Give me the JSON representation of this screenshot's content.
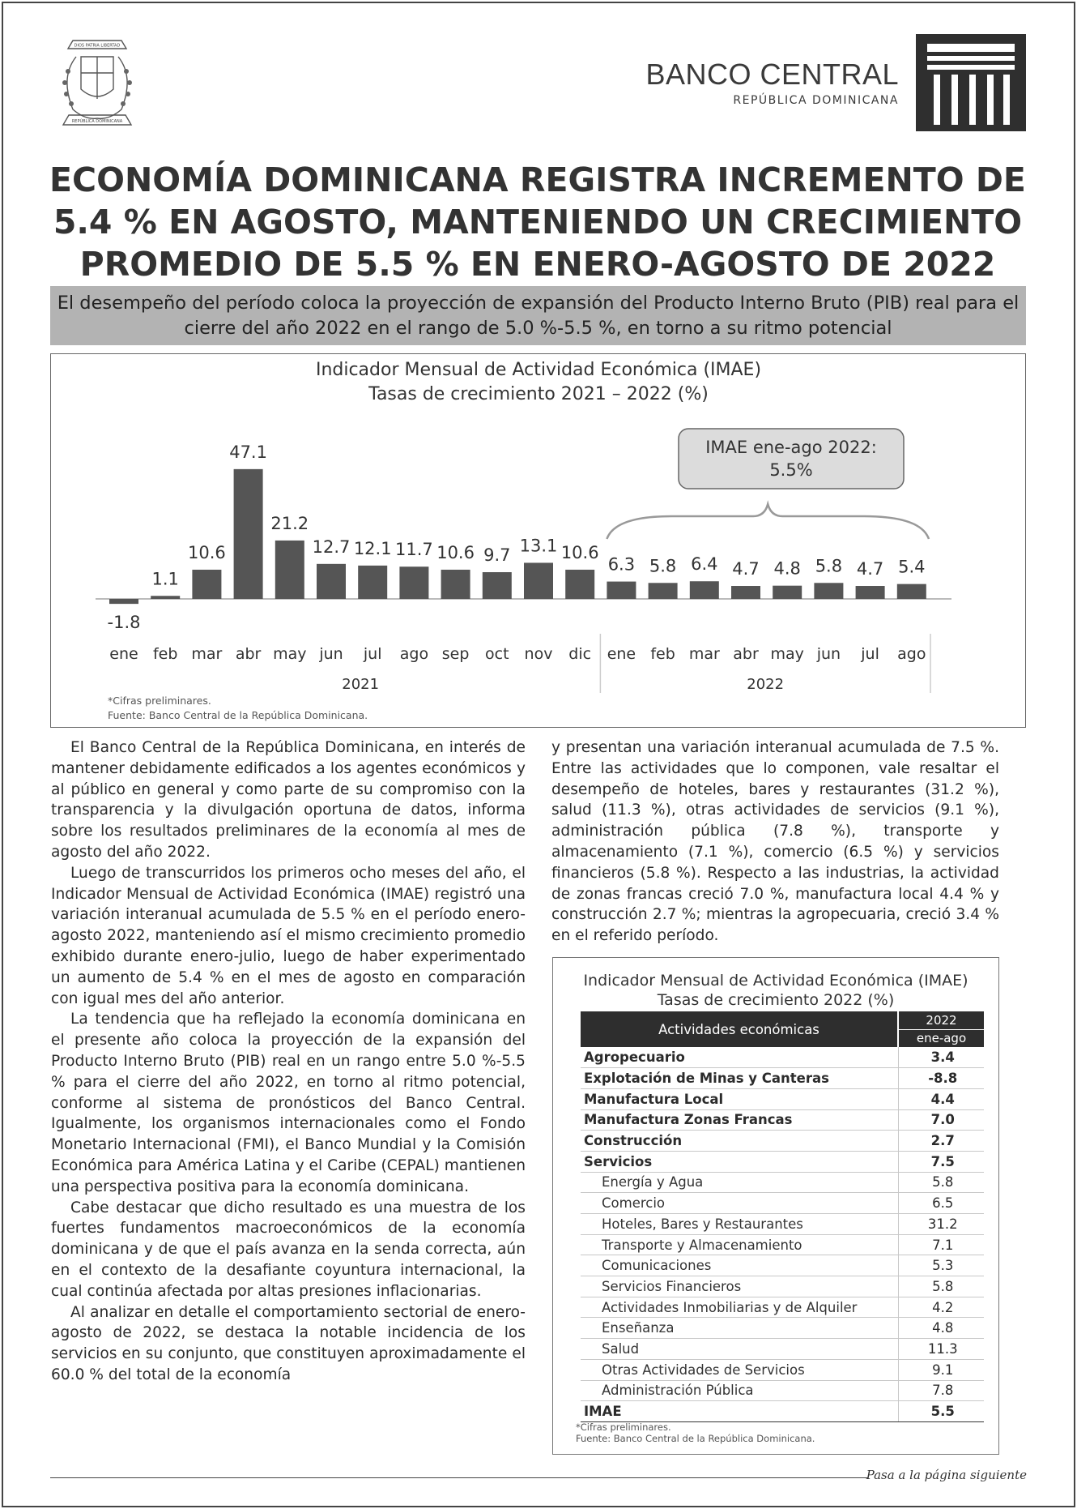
{
  "header": {
    "bank_name": "BANCO CENTRAL",
    "bank_subtitle": "REPÚBLICA DOMINICANA",
    "seal_text_top": "DIOS PATRIA LIBERTAD",
    "seal_text_bottom": "REPÚBLICA DOMINICANA"
  },
  "headline": "ECONOMÍA DOMINICANA REGISTRA INCREMENTO DE 5.4 % EN AGOSTO, MANTENIENDO UN CRECIMIENTO PROMEDIO DE 5.5 % EN ENERO-AGOSTO DE 2022",
  "subhead": "El desempeño del período coloca la proyección de expansión del Producto Interno Bruto (PIB) real para el cierre del año 2022 en el rango de 5.0 %-5.5 %, en torno a su ritmo potencial",
  "chart_data": {
    "type": "bar",
    "title": "Indicador Mensual de Actividad Económica (IMAE)",
    "subtitle": "Tasas de crecimiento 2021 – 2022 (%)",
    "categories": [
      "ene",
      "feb",
      "mar",
      "abr",
      "may",
      "jun",
      "jul",
      "ago",
      "sep",
      "oct",
      "nov",
      "dic",
      "ene",
      "feb",
      "mar",
      "abr",
      "may",
      "jun",
      "jul",
      "ago"
    ],
    "values": [
      -1.8,
      1.1,
      10.6,
      47.1,
      21.2,
      12.7,
      12.1,
      11.7,
      10.6,
      9.7,
      13.1,
      10.6,
      6.3,
      5.8,
      6.4,
      4.7,
      4.8,
      5.8,
      4.7,
      5.4
    ],
    "groups": [
      {
        "label": "2021",
        "count": 12
      },
      {
        "label": "2022",
        "count": 8
      }
    ],
    "annotation": {
      "line1": "IMAE ene-ago 2022:",
      "line2": "5.5%"
    },
    "notes": [
      "*Cifras preliminares.",
      "Fuente: Banco Central de la República Dominicana."
    ],
    "grid": false,
    "bar_color": "#555555"
  },
  "body": {
    "left_paragraphs": [
      "El Banco Central de la República Dominicana, en interés de mantener debidamente edificados a los agentes económicos y al público en general y como parte de su compromiso con la transparencia y la divulgación oportuna de datos, informa sobre los resultados preliminares de la economía al mes de agosto del año 2022.",
      "Luego de transcurridos los primeros ocho meses del año, el Indicador Mensual de Actividad Económica (IMAE) registró una variación interanual acumulada de 5.5 % en el período enero-agosto 2022, manteniendo así el mismo crecimiento promedio exhibido durante enero-julio, luego de haber experimentado un aumento de 5.4 % en el mes de agosto en comparación con igual mes del año anterior.",
      "La tendencia que ha reflejado la economía dominicana en el presente año coloca la proyección de la expansión del Producto Interno Bruto (PIB) real en un rango entre 5.0 %-5.5 % para el cierre del año 2022, en torno al ritmo potencial, conforme al sistema de pronósticos del Banco Central. Igualmente, los organismos internacionales como el Fondo Monetario Internacional (FMI), el Banco Mundial y la Comisión Económica para América Latina y el Caribe (CEPAL) mantienen una perspectiva positiva para la economía dominicana.",
      "Cabe destacar que dicho resultado es una muestra de los fuertes fundamentos macroeconómicos de la economía dominicana y de que el país avanza en la senda correcta, aún en el contexto de la desafiante coyuntura internacional, la cual continúa afectada por altas presiones inflacionarias.",
      "Al analizar en detalle el comportamiento sectorial de enero-agosto de 2022, se destaca la notable incidencia de los servicios en su conjunto, que constituyen aproximadamente el 60.0 % del total de la economía"
    ],
    "right_paragraph": "y presentan una variación interanual acumulada de 7.5 %. Entre las actividades que lo componen, vale resaltar el desempeño de hoteles, bares y restaurantes (31.2 %), salud (11.3 %), otras actividades de servicios (9.1 %), administración pública (7.8 %), transporte y almacenamiento (7.1 %), comercio (6.5 %) y servicios financieros (5.8 %). Respecto a las industrias, la actividad de zonas francas creció 7.0 %, manufactura local 4.4 % y construcción 2.7 %; mientras la agropecuaria, creció 3.4 % en el referido período."
  },
  "table": {
    "title": "Indicador Mensual de Actividad Económica (IMAE)",
    "subtitle": "Tasas de crecimiento 2022 (%)",
    "col_header": "Actividades económicas",
    "year_header": "2022",
    "period_header": "ene-ago",
    "rows": [
      {
        "label": "Agropecuario",
        "value": "3.4",
        "level": "main"
      },
      {
        "label": "Explotación de Minas y Canteras",
        "value": "-8.8",
        "level": "main"
      },
      {
        "label": "Manufactura Local",
        "value": "4.4",
        "level": "main"
      },
      {
        "label": "Manufactura Zonas Francas",
        "value": "7.0",
        "level": "main"
      },
      {
        "label": "Construcción",
        "value": "2.7",
        "level": "main"
      },
      {
        "label": "Servicios",
        "value": "7.5",
        "level": "main"
      },
      {
        "label": "Energía y Agua",
        "value": "5.8",
        "level": "sub"
      },
      {
        "label": "Comercio",
        "value": "6.5",
        "level": "sub"
      },
      {
        "label": "Hoteles, Bares y Restaurantes",
        "value": "31.2",
        "level": "sub"
      },
      {
        "label": "Transporte y Almacenamiento",
        "value": "7.1",
        "level": "sub"
      },
      {
        "label": "Comunicaciones",
        "value": "5.3",
        "level": "sub"
      },
      {
        "label": "Servicios Financieros",
        "value": "5.8",
        "level": "sub"
      },
      {
        "label": "Actividades Inmobiliarias y de Alquiler",
        "value": "4.2",
        "level": "sub"
      },
      {
        "label": "Enseñanza",
        "value": "4.8",
        "level": "sub"
      },
      {
        "label": "Salud",
        "value": "11.3",
        "level": "sub"
      },
      {
        "label": "Otras Actividades de Servicios",
        "value": "9.1",
        "level": "sub"
      },
      {
        "label": "Administración Pública",
        "value": "7.8",
        "level": "sub"
      },
      {
        "label": "IMAE",
        "value": "5.5",
        "level": "total"
      }
    ],
    "notes": [
      "*Cifras preliminares.",
      "Fuente: Banco Central de la República Dominicana."
    ]
  },
  "footer": {
    "next_page": "Pasa a la página siguiente"
  }
}
